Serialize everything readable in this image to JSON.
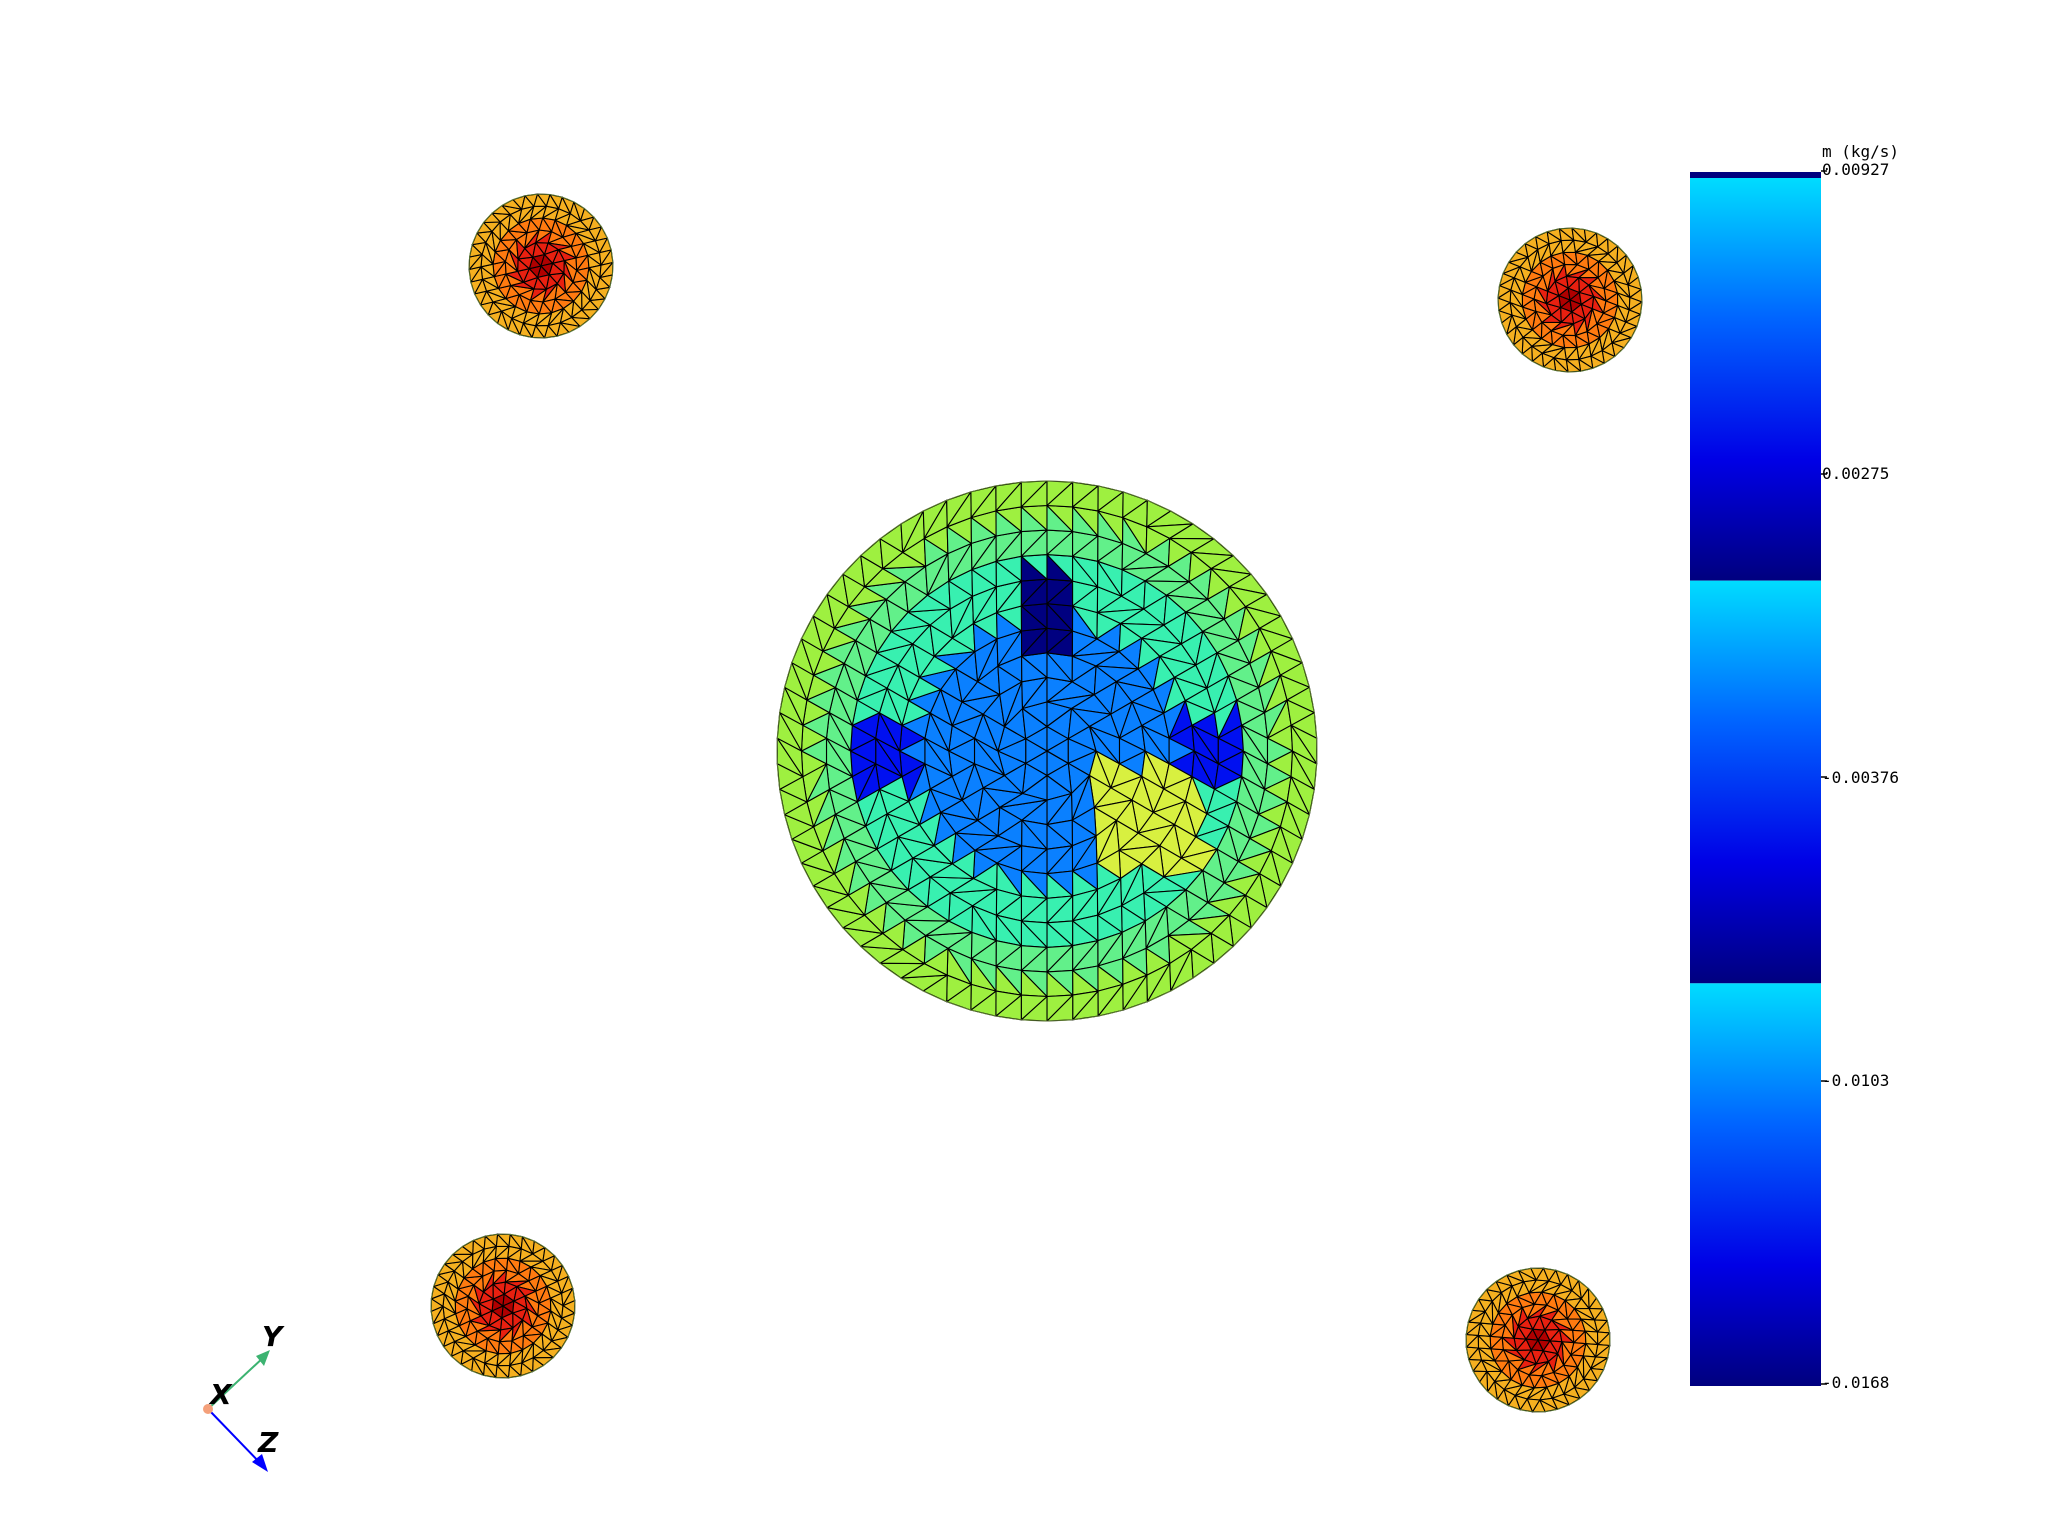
{
  "colorbar": {
    "title": "m (kg/s)",
    "ticks": [
      "0.00927",
      "0.00275",
      "-0.00376",
      "-0.0103",
      "-0.0168"
    ],
    "top_cap_color": "#00007f",
    "band_colors": [
      "#00dcff",
      "#0064ff",
      "#0000e6",
      "#00007f"
    ]
  },
  "axes": {
    "x": "X",
    "y": "Y",
    "z": "Z"
  },
  "colors": {
    "mesh_edge": "#000000",
    "small_disk_outer": "#f5b020",
    "small_disk_mid": "#ff7a10",
    "small_disk_core": "#e82010",
    "small_disk_dark": "#b00000",
    "big_rim": "#9ef040",
    "big_ring": "#38f0b0",
    "big_core": "#0a80ff",
    "big_accent_dark": "#000080",
    "big_accent_blue": "#0010f0",
    "big_patch": "#d8f040",
    "axis_y": "#3cb371",
    "axis_z": "#0000ff",
    "axis_origin": "#f4a07a"
  }
}
